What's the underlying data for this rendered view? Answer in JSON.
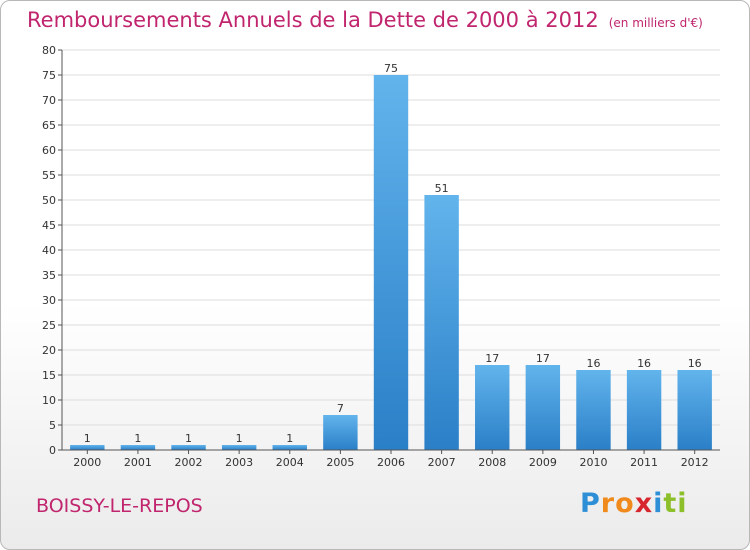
{
  "title": "Remboursements Annuels de la Dette de 2000 à 2012",
  "subtitle": "(en milliers d'€)",
  "city": "BOISSY-LE-REPOS",
  "logo": {
    "text": "Proxiti",
    "letters": [
      {
        "char": "P",
        "color": "#2e8fd6"
      },
      {
        "char": "r",
        "color": "#f08a1c"
      },
      {
        "char": "o",
        "color": "#f08a1c"
      },
      {
        "char": "x",
        "color": "#d8262e"
      },
      {
        "char": "i",
        "color": "#2e8fd6"
      },
      {
        "char": "t",
        "color": "#8cbf2a"
      },
      {
        "char": "i",
        "color": "#8cbf2a"
      }
    ]
  },
  "colors": {
    "accent": "#c0256e",
    "bar_top": "#62b4ec",
    "bar_bottom": "#2a7fc7",
    "grid": "#dddddd",
    "axis": "#555555"
  },
  "chart_data": {
    "type": "bar",
    "title": "Remboursements Annuels de la Dette de 2000 à 2012",
    "subtitle": "(en milliers d'€)",
    "categories": [
      "2000",
      "2001",
      "2002",
      "2003",
      "2004",
      "2005",
      "2006",
      "2007",
      "2008",
      "2009",
      "2010",
      "2011",
      "2012"
    ],
    "values": [
      1,
      1,
      1,
      1,
      1,
      7,
      75,
      51,
      17,
      17,
      16,
      16,
      16
    ],
    "data_labels": [
      "1",
      "1",
      "1",
      "1",
      "1",
      "7",
      "75",
      "51",
      "17",
      "17",
      "16",
      "16",
      "16"
    ],
    "ylim": [
      0,
      80
    ],
    "yticks": [
      0,
      5,
      10,
      15,
      20,
      25,
      30,
      35,
      40,
      45,
      50,
      55,
      60,
      65,
      70,
      75,
      80
    ],
    "xlabel": "",
    "ylabel": "",
    "grid": true
  }
}
